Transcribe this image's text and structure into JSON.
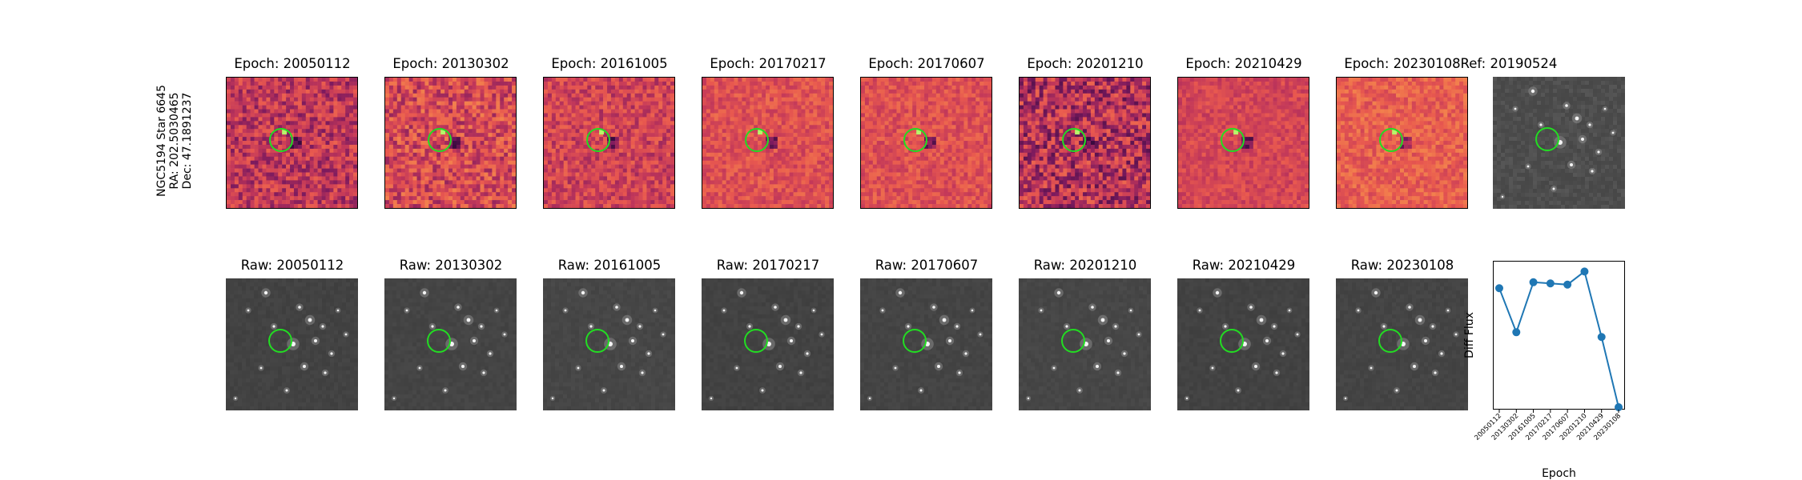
{
  "row_label": {
    "star": "NGC5194 Star 6645",
    "ra": "RA: 202.5030465",
    "dec": "Dec: 47.1891237"
  },
  "diff_panels": [
    {
      "title": "Epoch: 20050112"
    },
    {
      "title": "Epoch: 20130302"
    },
    {
      "title": "Epoch: 20161005"
    },
    {
      "title": "Epoch: 20170217"
    },
    {
      "title": "Epoch: 20170607"
    },
    {
      "title": "Epoch: 20201210"
    },
    {
      "title": "Epoch: 20210429"
    },
    {
      "title": "Epoch: 20230108"
    }
  ],
  "ref_panel": {
    "title": "Ref: 20190524"
  },
  "raw_panels": [
    {
      "title": "Raw: 20050112"
    },
    {
      "title": "Raw: 20130302"
    },
    {
      "title": "Raw: 20161005"
    },
    {
      "title": "Raw: 20170217"
    },
    {
      "title": "Raw: 20170607"
    },
    {
      "title": "Raw: 20201210"
    },
    {
      "title": "Raw: 20210429"
    },
    {
      "title": "Raw: 20230108"
    }
  ],
  "colors": {
    "diff_cmap": [
      "#3a0a3f",
      "#7b1a5e",
      "#c0365a",
      "#e8584f",
      "#f58b4c",
      "#f9c27a"
    ],
    "raw_cmap": [
      "#333333",
      "#4a4a4a",
      "#8a8a8a",
      "#e0e0e0"
    ],
    "aperture": "#22dd22",
    "series": "#1f77b4"
  },
  "chart_data": {
    "type": "line",
    "xlabel": "Epoch",
    "ylabel": "Diff Flux",
    "categories": [
      "20050112",
      "20130302",
      "20161005",
      "20170217",
      "20170607",
      "20201210",
      "20210429",
      "20230108"
    ],
    "values": [
      0.72,
      0.35,
      0.77,
      0.76,
      0.75,
      0.86,
      0.31,
      -0.28
    ],
    "ylim": [
      -0.3,
      0.95
    ],
    "grid": false,
    "y_ticks_visible": false,
    "marker": "circle"
  }
}
